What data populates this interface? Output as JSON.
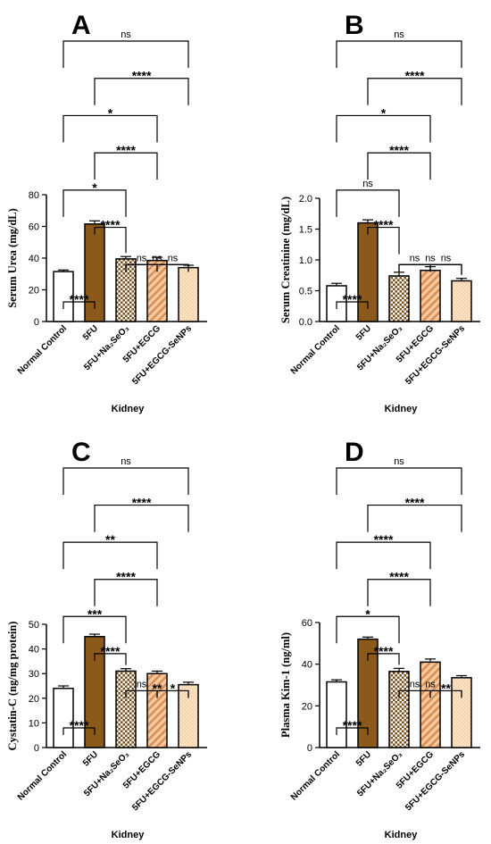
{
  "colors": {
    "normal_control": "#ffffff",
    "fu": "#8B5A1B",
    "na2seo3_pattern": "#7A4F1C",
    "egcg_pattern": "#D88E55",
    "egcg_fill": "#F7C9A0",
    "senps_fill": "#FBE2C4",
    "senps_dots": "#E8B880"
  },
  "chart_data": [
    {
      "panel": "A",
      "type": "bar",
      "ylabel": "Serum Urea (mg/dL)",
      "xlabel": "Kidney",
      "categories": [
        "Normal Control",
        "5FU",
        "5FU+Na₂SeO₃",
        "5FU+EGCG",
        "5FU+EGCG-SeNPs"
      ],
      "values": [
        31.5,
        61.5,
        39.5,
        38.5,
        34
      ],
      "errors": [
        1,
        2,
        1.5,
        2,
        1.5
      ],
      "ylim": [
        0,
        80
      ],
      "yticks": [
        "0",
        "20",
        "40",
        "60",
        "80"
      ],
      "comparisons": [
        {
          "from": 0,
          "to": 4,
          "label": "ns"
        },
        {
          "from": 1,
          "to": 4,
          "label": "****"
        },
        {
          "from": 0,
          "to": 3,
          "label": "*"
        },
        {
          "from": 1,
          "to": 3,
          "label": "****"
        },
        {
          "from": 0,
          "to": 2,
          "label": "*"
        },
        {
          "from": 1,
          "to": 2,
          "label": "****"
        },
        {
          "from": 2,
          "to": 4,
          "label": "ns"
        },
        {
          "from": 0,
          "to": 1,
          "label": "****"
        },
        {
          "from": 2,
          "to": 3,
          "label": "ns"
        },
        {
          "from": 3,
          "to": 4,
          "label": "ns"
        }
      ]
    },
    {
      "panel": "B",
      "type": "bar",
      "ylabel": "Serum Creatinine (mg/dL)",
      "xlabel": "Kidney",
      "categories": [
        "Normal Control",
        "5FU",
        "5FU+Na₂SeO₃",
        "5FU+EGCG",
        "5FU+EGCG-SeNPs"
      ],
      "values": [
        0.58,
        1.6,
        0.74,
        0.83,
        0.66
      ],
      "errors": [
        0.04,
        0.05,
        0.06,
        0.06,
        0.04
      ],
      "ylim": [
        0,
        2.0
      ],
      "yticks": [
        "0.0",
        "0.5",
        "1.0",
        "1.5",
        "2.0"
      ],
      "comparisons": [
        {
          "from": 0,
          "to": 4,
          "label": "ns"
        },
        {
          "from": 1,
          "to": 4,
          "label": "****"
        },
        {
          "from": 0,
          "to": 3,
          "label": "*"
        },
        {
          "from": 1,
          "to": 3,
          "label": "****"
        },
        {
          "from": 0,
          "to": 2,
          "label": "ns"
        },
        {
          "from": 1,
          "to": 2,
          "label": "****"
        },
        {
          "from": 2,
          "to": 4,
          "label": "ns"
        },
        {
          "from": 0,
          "to": 1,
          "label": "****"
        },
        {
          "from": 2,
          "to": 3,
          "label": "ns"
        },
        {
          "from": 3,
          "to": 4,
          "label": "ns"
        }
      ]
    },
    {
      "panel": "C",
      "type": "bar",
      "ylabel": "Cystatin-C (ng/mg protein)",
      "xlabel": "Kidney",
      "categories": [
        "Normal Control",
        "5FU",
        "5FU+Na₂SeO₃",
        "5FU+EGCG",
        "5FU+EGCG-SeNPs"
      ],
      "values": [
        24,
        45,
        31,
        30,
        25.5
      ],
      "errors": [
        1,
        1,
        1,
        1,
        1
      ],
      "ylim": [
        0,
        50
      ],
      "yticks": [
        "0",
        "10",
        "20",
        "30",
        "40",
        "50"
      ],
      "comparisons": [
        {
          "from": 0,
          "to": 4,
          "label": "ns"
        },
        {
          "from": 1,
          "to": 4,
          "label": "****"
        },
        {
          "from": 0,
          "to": 3,
          "label": "**"
        },
        {
          "from": 1,
          "to": 3,
          "label": "****"
        },
        {
          "from": 0,
          "to": 2,
          "label": "***"
        },
        {
          "from": 1,
          "to": 2,
          "label": "****"
        },
        {
          "from": 2,
          "to": 4,
          "label": "**"
        },
        {
          "from": 0,
          "to": 1,
          "label": "****"
        },
        {
          "from": 2,
          "to": 3,
          "label": "ns"
        },
        {
          "from": 3,
          "to": 4,
          "label": "*"
        }
      ]
    },
    {
      "panel": "D",
      "type": "bar",
      "ylabel": "Plasma Kim-1 (ng/ml)",
      "xlabel": "Kidney",
      "categories": [
        "Normal Control",
        "5FU",
        "5FU+Na₂SeO₃",
        "5FU+EGCG",
        "5FU+EGCG-SeNPs"
      ],
      "values": [
        31.5,
        52,
        36.5,
        41,
        33.5
      ],
      "errors": [
        1,
        1,
        1.5,
        1.5,
        1
      ],
      "ylim": [
        0,
        60
      ],
      "yticks": [
        "0",
        "20",
        "40",
        "60"
      ],
      "comparisons": [
        {
          "from": 0,
          "to": 4,
          "label": "ns"
        },
        {
          "from": 1,
          "to": 4,
          "label": "****"
        },
        {
          "from": 0,
          "to": 3,
          "label": "****"
        },
        {
          "from": 1,
          "to": 3,
          "label": "****"
        },
        {
          "from": 0,
          "to": 2,
          "label": "*"
        },
        {
          "from": 1,
          "to": 2,
          "label": "****"
        },
        {
          "from": 2,
          "to": 4,
          "label": "ns"
        },
        {
          "from": 0,
          "to": 1,
          "label": "****"
        },
        {
          "from": 2,
          "to": 3,
          "label": "ns"
        },
        {
          "from": 3,
          "to": 4,
          "label": "**"
        }
      ]
    }
  ]
}
